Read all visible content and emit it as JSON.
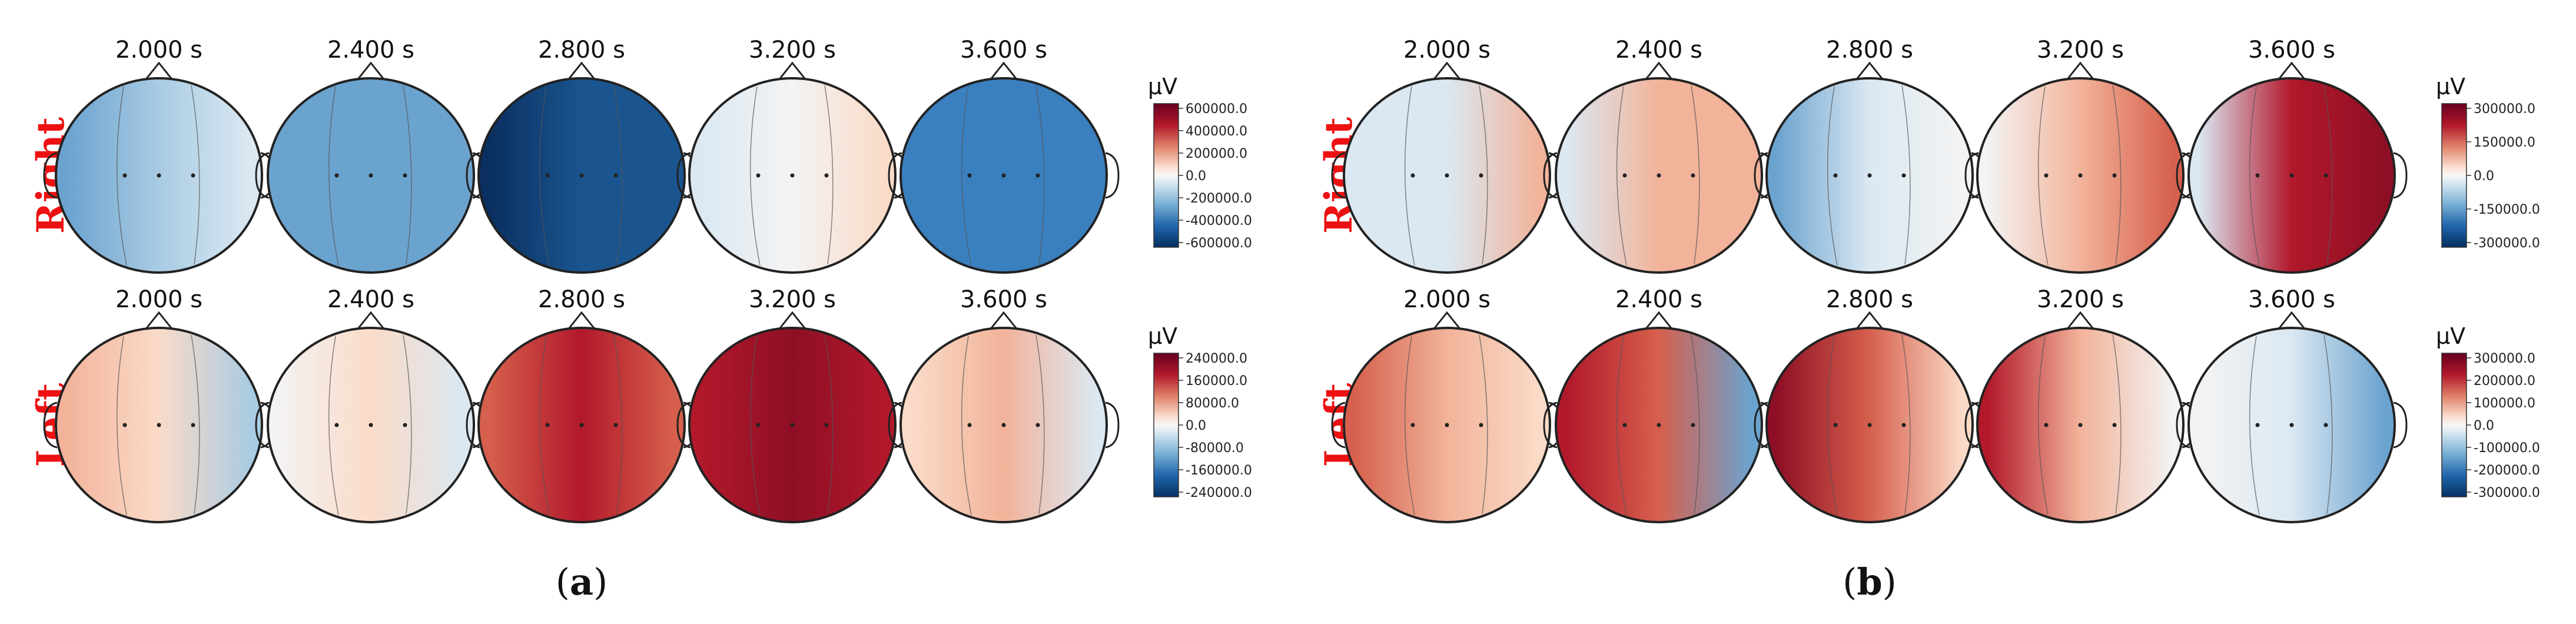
{
  "panels": [
    {
      "label_open": "(",
      "label_letter": "a",
      "label_close": ")",
      "rows": [
        {
          "name": "Right",
          "times": [
            "2.000 s",
            "2.400 s",
            "2.800 s",
            "3.200 s",
            "3.600 s"
          ],
          "colorbar": {
            "unit": "µV",
            "ticks": [
              "600000.0",
              "400000.0",
              "200000.0",
              "0.0",
              "-200000.0",
              "-400000.0",
              "-600000.0"
            ]
          }
        },
        {
          "name": "Left",
          "times": [
            "2.000 s",
            "2.400 s",
            "2.800 s",
            "3.200 s",
            "3.600 s"
          ],
          "colorbar": {
            "unit": "µV",
            "ticks": [
              "240000.0",
              "160000.0",
              "80000.0",
              "0.0",
              "-80000.0",
              "-160000.0",
              "-240000.0"
            ]
          }
        }
      ]
    },
    {
      "label_open": "(",
      "label_letter": "b",
      "label_close": ")",
      "rows": [
        {
          "name": "Right",
          "times": [
            "2.000 s",
            "2.400 s",
            "2.800 s",
            "3.200 s",
            "3.600 s"
          ],
          "colorbar": {
            "unit": "µV",
            "ticks": [
              "300000.0",
              "150000.0",
              "0.0",
              "-150000.0",
              "-300000.0"
            ]
          }
        },
        {
          "name": "Left",
          "times": [
            "2.000 s",
            "2.400 s",
            "2.800 s",
            "3.200 s",
            "3.600 s"
          ],
          "colorbar": {
            "unit": "µV",
            "ticks": [
              "300000.0",
              "200000.0",
              "100000.0",
              "0.0",
              "-100000.0",
              "-200000.0",
              "-300000.0"
            ]
          }
        }
      ]
    }
  ],
  "colormap": "RdBu_r"
}
